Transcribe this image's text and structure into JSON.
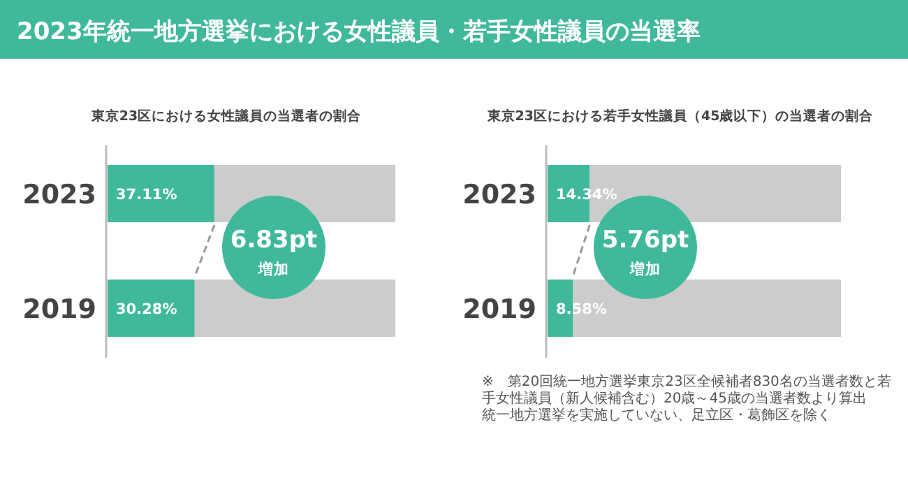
{
  "chart_data": [
    {
      "type": "bar",
      "orientation": "horizontal",
      "stacked": true,
      "title": "2023年統一地方選挙における女性議員・若手女性議員の当選率",
      "subtitle": "東京23区における女性議員の当選者の割合",
      "categories": [
        "2023",
        "2019"
      ],
      "xlim": [
        0,
        100
      ],
      "tick_labels": "y",
      "series": [
        {
          "color": "#40b99b",
          "values": [
            37.11,
            30.28
          ],
          "value_labels": [
            "37.11%",
            "30.28%"
          ]
        },
        {
          "color": "#cccccc",
          "values": [
            62.89,
            69.72
          ]
        }
      ],
      "annotations": [
        "6.83pt",
        "増加"
      ]
    },
    {
      "type": "bar",
      "orientation": "horizontal",
      "stacked": true,
      "subtitle": "東京23区における若手女性議員（45歳以下）の当選者の割合",
      "categories": [
        "2023",
        "2019"
      ],
      "xlim": [
        0,
        100
      ],
      "tick_labels": "y",
      "series": [
        {
          "color": "#40b99b",
          "values": [
            14.34,
            8.58
          ],
          "value_labels": [
            "14.34%",
            "8.58%"
          ]
        },
        {
          "color": "#cccccc",
          "values": [
            85.66,
            91.42
          ]
        }
      ],
      "annotations": [
        "5.76pt",
        "増加",
        "※　第20回統一地方選挙東京23区全候補者830名の当選者数と若手女性議員（新人候補含む）20歳～45歳の当選者数より算出",
        "統一地方選挙を実施していない、足立区・葛飾区を除く"
      ]
    }
  ]
}
